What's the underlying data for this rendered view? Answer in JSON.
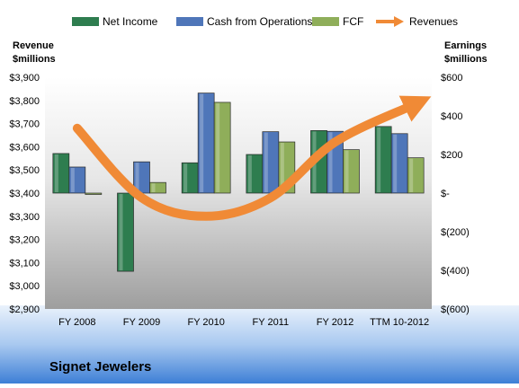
{
  "chart_data": {
    "type": "bar",
    "title": "Signet Jewelers",
    "categories": [
      "FY 2008",
      "FY 2009",
      "FY 2010",
      "FY 2011",
      "FY 2012",
      "TTM 10-2012"
    ],
    "left_axis": {
      "label_line1": "Revenue",
      "label_line2": "$millions",
      "ylim": [
        2900,
        3900
      ],
      "ticks": [
        2900,
        3000,
        3100,
        3200,
        3300,
        3400,
        3500,
        3600,
        3700,
        3800,
        3900
      ],
      "tick_labels": [
        "$2,900",
        "$3,000",
        "$3,100",
        "$3,200",
        "$3,300",
        "$3,400",
        "$3,500",
        "$3,600",
        "$3,700",
        "$3,800",
        "$3,900"
      ]
    },
    "right_axis": {
      "label_line1": "Earnings",
      "label_line2": "$millions",
      "ylim": [
        -600,
        600
      ],
      "ticks": [
        600,
        400,
        200,
        0,
        -200,
        -400,
        -600
      ],
      "tick_labels": [
        "$600",
        "$400",
        "$200",
        "$-",
        "$(200)",
        "$(400)",
        "$(600)"
      ]
    },
    "series": [
      {
        "name": "Net Income",
        "axis": "right",
        "kind": "bar",
        "color": "#2E7D4F",
        "values": [
          205,
          -405,
          157,
          200,
          324,
          345
        ]
      },
      {
        "name": "Cash from Operations",
        "axis": "right",
        "kind": "bar",
        "color": "#4F76B9",
        "values": [
          135,
          162,
          518,
          318,
          320,
          308
        ]
      },
      {
        "name": "FCF",
        "axis": "right",
        "kind": "bar",
        "color": "#8FAE5A",
        "values": [
          0,
          55,
          470,
          265,
          225,
          183
        ]
      },
      {
        "name": "Revenues",
        "axis": "left",
        "kind": "line",
        "color": "#F08A36",
        "values": [
          3680,
          3380,
          3300,
          3380,
          3620,
          3780
        ]
      }
    ],
    "legend_position": "top",
    "colors": {
      "plot_top": "#FFFFFF",
      "plot_bottom": "#9E9E9E",
      "page_bg": "#FFFFFF",
      "footer_top": "#EAF2FC",
      "footer_bottom": "#3D7FD6"
    }
  }
}
